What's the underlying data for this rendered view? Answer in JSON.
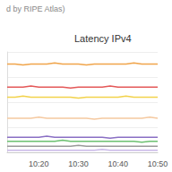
{
  "chart_data": {
    "type": "line",
    "title": "Latency IPv4",
    "subtitle": "d by RIPE Atlas)",
    "categories": [
      null,
      null,
      null,
      null,
      "10:20",
      null,
      null,
      null,
      null,
      "10:30",
      null,
      null,
      null,
      null,
      "10:40",
      null,
      null,
      null,
      null,
      "10:50"
    ],
    "series": [
      {
        "color": "#f0a44a",
        "values": [
          88,
          88,
          87,
          88,
          88,
          88,
          89,
          88,
          88,
          88,
          87,
          88,
          88,
          88,
          88,
          88,
          89,
          88,
          88,
          88
        ]
      },
      {
        "color": "#e45858",
        "values": [
          65,
          65,
          65,
          66,
          65,
          65,
          65,
          65,
          64,
          65,
          65,
          65,
          65,
          66,
          65,
          65,
          65,
          65,
          65,
          65
        ]
      },
      {
        "color": "#f2d24b",
        "values": [
          55,
          55,
          56,
          55,
          55,
          55,
          55,
          55,
          55,
          54,
          55,
          55,
          55,
          55,
          55,
          56,
          55,
          55,
          55,
          55
        ]
      },
      {
        "color": "#f5c9a0",
        "values": [
          34,
          34,
          34,
          34,
          35,
          34,
          34,
          34,
          34,
          34,
          34,
          33,
          34,
          34,
          34,
          34,
          34,
          34,
          35,
          34
        ]
      },
      {
        "color": "#8a6fc4",
        "values": [
          15,
          15,
          15,
          15,
          15,
          16,
          15,
          15,
          15,
          15,
          15,
          15,
          15,
          14,
          15,
          15,
          15,
          15,
          15,
          15
        ]
      },
      {
        "color": "#6cc070",
        "values": [
          11,
          11,
          11,
          11,
          11,
          11,
          11,
          12,
          11,
          11,
          11,
          11,
          11,
          11,
          11,
          11,
          11,
          10,
          11,
          11
        ]
      },
      {
        "color": "#9a9a9a",
        "values": [
          6,
          6,
          6,
          6,
          6,
          6,
          6,
          6,
          6,
          7,
          6,
          6,
          6,
          6,
          6,
          6,
          6,
          6,
          6,
          6
        ]
      },
      {
        "color": "#c9b8e8",
        "values": [
          2,
          2,
          2,
          2,
          2,
          2,
          2,
          2,
          2,
          2,
          2,
          2,
          3,
          2,
          2,
          2,
          2,
          2,
          2,
          2
        ]
      }
    ],
    "ylim": [
      0,
      100
    ],
    "yticks": [
      0,
      25,
      50,
      75,
      100
    ],
    "grid": true,
    "tick_labels": "x"
  }
}
